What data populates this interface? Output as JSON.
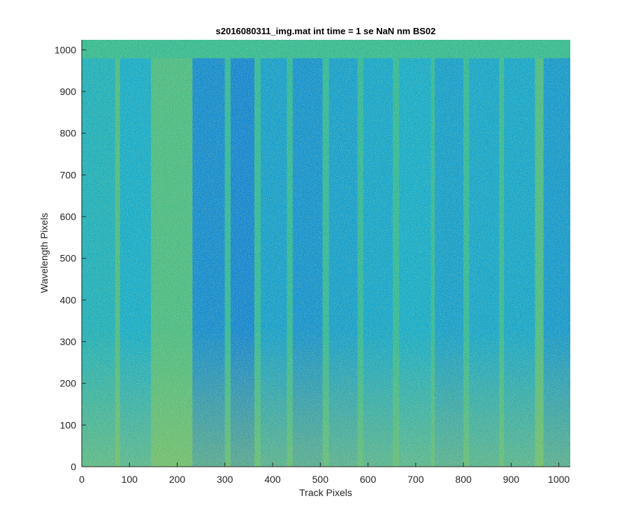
{
  "chart_data": {
    "type": "heatmap",
    "title": "s2016080311_img.mat int time = 1 se  NaN nm BS02",
    "xlabel": "Track Pixels",
    "ylabel": "Wavelength Pixels",
    "xlim": [
      0,
      1024
    ],
    "ylim": [
      0,
      1024
    ],
    "xticks": [
      0,
      100,
      200,
      300,
      400,
      500,
      600,
      700,
      800,
      900,
      1000
    ],
    "yticks": [
      0,
      100,
      200,
      300,
      400,
      500,
      600,
      700,
      800,
      900,
      1000
    ],
    "grid": false,
    "colormap": "parula",
    "colors": {
      "low": "#1fa5d5",
      "mid": "#27b3a0",
      "high": "#b9be49",
      "axis": "#262626"
    },
    "regions": [
      {
        "x": [
          0,
          70
        ],
        "y": [
          0,
          980
        ],
        "level": 0.46
      },
      {
        "x": [
          70,
          80
        ],
        "y": [
          0,
          980
        ],
        "level": 0.62
      },
      {
        "x": [
          80,
          145
        ],
        "y": [
          0,
          980
        ],
        "level": 0.42
      },
      {
        "x": [
          145,
          232
        ],
        "y": [
          0,
          980
        ],
        "level": 0.62
      },
      {
        "x": [
          232,
          300
        ],
        "y": [
          0,
          980
        ],
        "level": 0.32
      },
      {
        "x": [
          300,
          312
        ],
        "y": [
          0,
          980
        ],
        "level": 0.56
      },
      {
        "x": [
          312,
          362
        ],
        "y": [
          0,
          980
        ],
        "level": 0.3
      },
      {
        "x": [
          362,
          375
        ],
        "y": [
          0,
          980
        ],
        "level": 0.56
      },
      {
        "x": [
          375,
          430
        ],
        "y": [
          0,
          980
        ],
        "level": 0.38
      },
      {
        "x": [
          430,
          442
        ],
        "y": [
          0,
          980
        ],
        "level": 0.56
      },
      {
        "x": [
          442,
          505
        ],
        "y": [
          0,
          980
        ],
        "level": 0.34
      },
      {
        "x": [
          505,
          518
        ],
        "y": [
          0,
          980
        ],
        "level": 0.56
      },
      {
        "x": [
          518,
          578
        ],
        "y": [
          0,
          980
        ],
        "level": 0.38
      },
      {
        "x": [
          578,
          590
        ],
        "y": [
          0,
          980
        ],
        "level": 0.56
      },
      {
        "x": [
          590,
          652
        ],
        "y": [
          0,
          980
        ],
        "level": 0.4
      },
      {
        "x": [
          652,
          665
        ],
        "y": [
          0,
          980
        ],
        "level": 0.56
      },
      {
        "x": [
          665,
          732
        ],
        "y": [
          0,
          980
        ],
        "level": 0.42
      },
      {
        "x": [
          732,
          740
        ],
        "y": [
          0,
          980
        ],
        "level": 0.56
      },
      {
        "x": [
          740,
          800
        ],
        "y": [
          0,
          980
        ],
        "level": 0.38
      },
      {
        "x": [
          800,
          812
        ],
        "y": [
          0,
          980
        ],
        "level": 0.56
      },
      {
        "x": [
          812,
          875
        ],
        "y": [
          0,
          980
        ],
        "level": 0.4
      },
      {
        "x": [
          875,
          885
        ],
        "y": [
          0,
          980
        ],
        "level": 0.58
      },
      {
        "x": [
          885,
          950
        ],
        "y": [
          0,
          980
        ],
        "level": 0.4
      },
      {
        "x": [
          950,
          968
        ],
        "y": [
          0,
          980
        ],
        "level": 0.62
      },
      {
        "x": [
          968,
          1024
        ],
        "y": [
          0,
          980
        ],
        "level": 0.36
      },
      {
        "x": [
          0,
          1024
        ],
        "y": [
          980,
          1024
        ],
        "level": 0.58
      }
    ]
  }
}
